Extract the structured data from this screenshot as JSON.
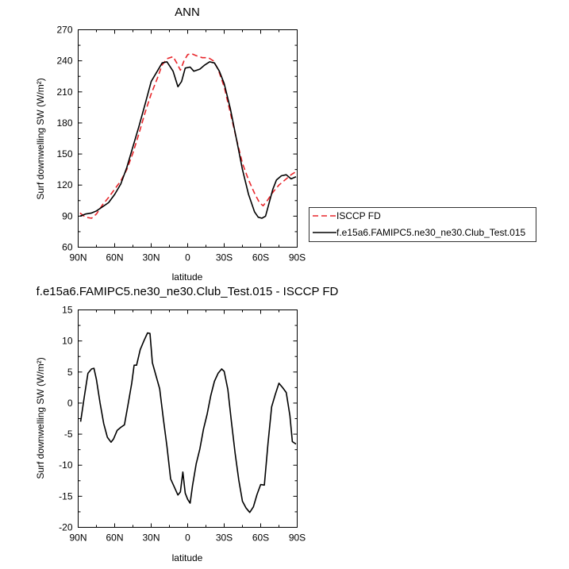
{
  "chart_data": [
    {
      "type": "line",
      "title": "ANN",
      "xlabel": "latitude",
      "ylabel": "Surf downwelling SW (W/m²)",
      "xlim": [
        90,
        -90
      ],
      "ylim": [
        60,
        270
      ],
      "xticks": [
        90,
        60,
        30,
        0,
        -30,
        -60,
        -90
      ],
      "xtick_labels": [
        "90N",
        "60N",
        "30N",
        "0",
        "30S",
        "60S",
        "90S"
      ],
      "yticks": [
        60,
        90,
        120,
        150,
        180,
        210,
        240,
        270
      ],
      "ytick_labels": [
        "60",
        "90",
        "120",
        "150",
        "180",
        "210",
        "240",
        "270"
      ],
      "grid": false,
      "legend": "outside-right",
      "series": [
        {
          "name": "ISCCP FD",
          "color": "#e8262b",
          "dash": "dashed",
          "points": [
            [
              88.5,
              93
            ],
            [
              84,
              89
            ],
            [
              79,
              88
            ],
            [
              75,
              92
            ],
            [
              70,
              101
            ],
            [
              65,
              108
            ],
            [
              60,
              116
            ],
            [
              55,
              124
            ],
            [
              50,
              135
            ],
            [
              45,
              151
            ],
            [
              40,
              170
            ],
            [
              35,
              190
            ],
            [
              30,
              208
            ],
            [
              25,
              223
            ],
            [
              21,
              236
            ],
            [
              17,
              242
            ],
            [
              12,
              244
            ],
            [
              9,
              238
            ],
            [
              6,
              231
            ],
            [
              3,
              240
            ],
            [
              0,
              246
            ],
            [
              -3,
              247
            ],
            [
              -7,
              245
            ],
            [
              -12,
              243
            ],
            [
              -17,
              243
            ],
            [
              -21,
              240
            ],
            [
              -25,
              232
            ],
            [
              -30,
              215
            ],
            [
              -35,
              190
            ],
            [
              -40,
              165
            ],
            [
              -45,
              141
            ],
            [
              -50,
              125
            ],
            [
              -55,
              112
            ],
            [
              -59,
              103
            ],
            [
              -62,
              100
            ],
            [
              -66,
              106
            ],
            [
              -70,
              113
            ],
            [
              -75,
              120
            ],
            [
              -80,
              125
            ],
            [
              -85,
              130
            ],
            [
              -89,
              133
            ]
          ]
        },
        {
          "name": "f.e15a6.FAMIPC5.ne30_ne30.Club_Test.015",
          "color": "#000000",
          "dash": "solid",
          "points": [
            [
              88.5,
              90
            ],
            [
              84,
              92
            ],
            [
              79,
              93
            ],
            [
              75,
              95
            ],
            [
              70,
              99
            ],
            [
              65,
              103
            ],
            [
              60,
              111
            ],
            [
              55,
              121
            ],
            [
              50,
              137
            ],
            [
              45,
              157
            ],
            [
              40,
              177
            ],
            [
              35,
              198
            ],
            [
              30,
              220
            ],
            [
              25,
              230
            ],
            [
              21,
              238
            ],
            [
              17,
              239
            ],
            [
              12,
              230
            ],
            [
              8,
              215
            ],
            [
              5,
              220
            ],
            [
              2,
              233
            ],
            [
              -2,
              234
            ],
            [
              -5,
              230
            ],
            [
              -10,
              232
            ],
            [
              -14,
              236
            ],
            [
              -18,
              239
            ],
            [
              -22,
              238
            ],
            [
              -26,
              230
            ],
            [
              -30,
              218
            ],
            [
              -35,
              194
            ],
            [
              -40,
              165
            ],
            [
              -45,
              135
            ],
            [
              -50,
              111
            ],
            [
              -55,
              94
            ],
            [
              -58,
              89
            ],
            [
              -61,
              88
            ],
            [
              -64,
              90
            ],
            [
              -67,
              103
            ],
            [
              -70,
              116
            ],
            [
              -73,
              125
            ],
            [
              -77,
              129
            ],
            [
              -81,
              130
            ],
            [
              -85,
              126
            ],
            [
              -89,
              128
            ]
          ]
        }
      ]
    },
    {
      "type": "line",
      "title": "f.e15a6.FAMIPC5.ne30_ne30.Club_Test.015 - ISCCP FD",
      "xlabel": "latitude",
      "ylabel": "Surf downwelling SW (W/m²)",
      "xlim": [
        90,
        -90
      ],
      "ylim": [
        -20,
        15
      ],
      "xticks": [
        90,
        60,
        30,
        0,
        -30,
        -60,
        -90
      ],
      "xtick_labels": [
        "90N",
        "60N",
        "30N",
        "0",
        "30S",
        "60S",
        "90S"
      ],
      "yticks": [
        -20,
        -15,
        -10,
        -5,
        0,
        5,
        10,
        15
      ],
      "ytick_labels": [
        "-20",
        "-15",
        "-10",
        "-5",
        "0",
        "5",
        "10",
        "15"
      ],
      "grid": false,
      "series": [
        {
          "color": "#000000",
          "dash": "solid",
          "points": [
            [
              88,
              -3
            ],
            [
              85,
              1
            ],
            [
              82,
              4.8
            ],
            [
              79,
              5.5
            ],
            [
              77,
              5.6
            ],
            [
              75,
              3.8
            ],
            [
              72,
              0
            ],
            [
              69,
              -3.3
            ],
            [
              66,
              -5.5
            ],
            [
              63,
              -6.3
            ],
            [
              61,
              -5.8
            ],
            [
              58,
              -4.4
            ],
            [
              55,
              -3.9
            ],
            [
              52,
              -3.5
            ],
            [
              49,
              -0.2
            ],
            [
              46,
              3.2
            ],
            [
              44,
              6.1
            ],
            [
              42,
              6.1
            ],
            [
              39,
              8.6
            ],
            [
              36,
              10
            ],
            [
              33,
              11.3
            ],
            [
              31,
              11.2
            ],
            [
              29,
              6.5
            ],
            [
              26,
              4.4
            ],
            [
              23,
              2.3
            ],
            [
              20,
              -2.5
            ],
            [
              17,
              -7
            ],
            [
              14,
              -12.2
            ],
            [
              11,
              -13.5
            ],
            [
              8,
              -14.8
            ],
            [
              6,
              -14.3
            ],
            [
              4,
              -11.1
            ],
            [
              2,
              -14.5
            ],
            [
              0,
              -15.5
            ],
            [
              -2,
              -16.1
            ],
            [
              -4,
              -13.3
            ],
            [
              -7,
              -9.8
            ],
            [
              -10,
              -7.4
            ],
            [
              -13,
              -4.2
            ],
            [
              -16,
              -1.8
            ],
            [
              -19,
              1.2
            ],
            [
              -22,
              3.5
            ],
            [
              -25,
              4.8
            ],
            [
              -28,
              5.5
            ],
            [
              -30,
              5.1
            ],
            [
              -33,
              2.2
            ],
            [
              -36,
              -3.1
            ],
            [
              -39,
              -8.1
            ],
            [
              -42,
              -12.4
            ],
            [
              -45,
              -15.8
            ],
            [
              -48,
              -16.9
            ],
            [
              -51,
              -17.6
            ],
            [
              -54,
              -16.7
            ],
            [
              -57,
              -14.7
            ],
            [
              -60,
              -13.1
            ],
            [
              -63,
              -13.2
            ],
            [
              -66,
              -6.5
            ],
            [
              -69,
              -0.6
            ],
            [
              -72,
              1.4
            ],
            [
              -75,
              3.2
            ],
            [
              -78,
              2.5
            ],
            [
              -81,
              1.7
            ],
            [
              -84,
              -2
            ],
            [
              -86,
              -6.2
            ],
            [
              -89,
              -6.6
            ]
          ]
        }
      ]
    }
  ]
}
